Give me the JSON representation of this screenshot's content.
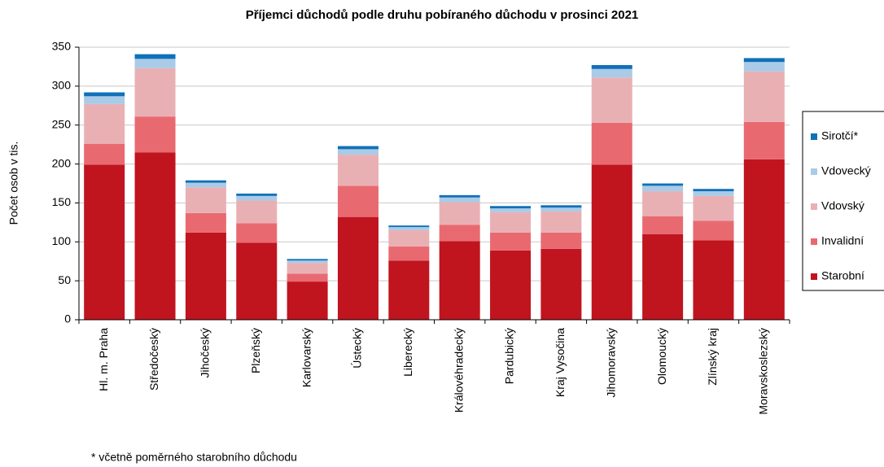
{
  "chart_data": {
    "type": "stacked_bar",
    "title": "Příjemci důchodů podle druhu pobíraného důchodu v prosinci 2021",
    "y_label": "Počet osob v tis.",
    "footnote": "* včetně poměrného starobního důchodu",
    "categories": [
      "Hl. m. Praha",
      "Středočeský",
      "Jihočeský",
      "Plzeňský",
      "Karlovarský",
      "Ústecký",
      "Liberecký",
      "Královéhradecký",
      "Pardubický",
      "Kraj Vysočina",
      "Jihomoravský",
      "Olomoucký",
      "Zlínský kraj",
      "Moravskoslezský"
    ],
    "series": [
      {
        "name": "Starobní",
        "color": "#c0141f",
        "values": [
          199,
          215,
          112,
          99,
          49,
          132,
          76,
          101,
          89,
          91,
          199,
          110,
          102,
          206
        ]
      },
      {
        "name": "Invalidní",
        "color": "#e86a70",
        "values": [
          27,
          46,
          25,
          25,
          10,
          40,
          18,
          21,
          23,
          21,
          54,
          23,
          25,
          48
        ]
      },
      {
        "name": "Vdovský",
        "color": "#e9b0b4",
        "values": [
          51,
          62,
          33,
          29,
          14,
          40,
          21,
          29,
          26,
          27,
          58,
          32,
          32,
          65
        ]
      },
      {
        "name": "Vdovecký",
        "color": "#a9cbe7",
        "values": [
          10,
          12,
          6,
          6,
          3,
          7,
          4,
          6,
          5,
          5,
          11,
          7,
          6,
          12
        ]
      },
      {
        "name": "Sirotčí*",
        "color": "#1070b8",
        "values": [
          5,
          6,
          3,
          3,
          2,
          4,
          2,
          3,
          3,
          3,
          5,
          3,
          3,
          5
        ]
      }
    ],
    "ylim": [
      0,
      350
    ],
    "yticks": [
      0,
      50,
      100,
      150,
      200,
      250,
      300,
      350
    ],
    "grid": true
  }
}
